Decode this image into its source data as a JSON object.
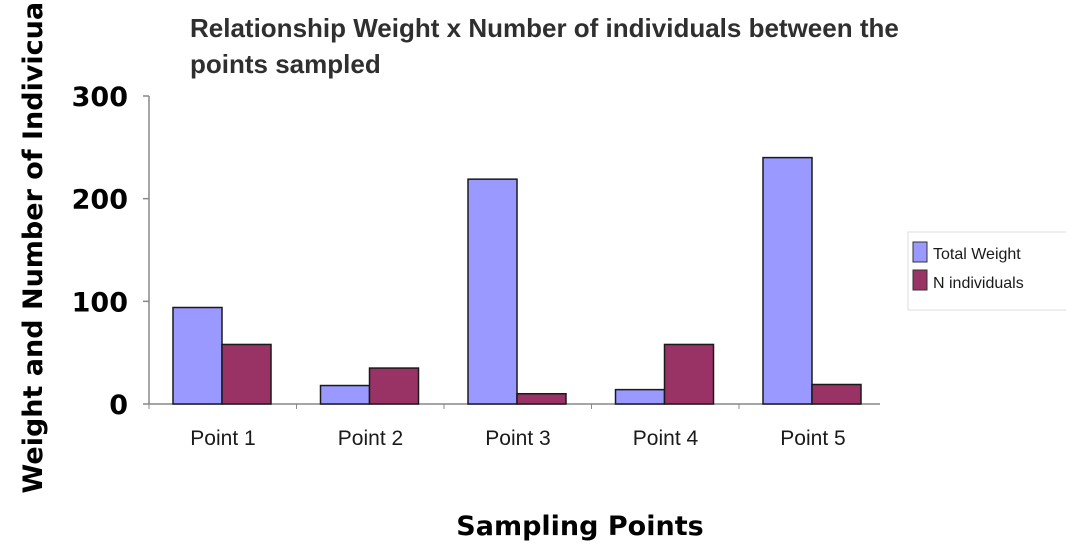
{
  "chart_data": {
    "type": "bar",
    "title_line1": "Relationship Weight x Number of individuals between the",
    "title_line2": "points sampled",
    "xlabel": "Sampling Points",
    "ylabel": "Weight and Number of Indivicuals",
    "categories": [
      "Point 1",
      "Point 2",
      "Point 3",
      "Point 4",
      "Point 5"
    ],
    "series": [
      {
        "name": "Total Weight",
        "values": [
          94,
          18,
          219,
          14,
          240
        ],
        "color": "#9999ff"
      },
      {
        "name": "N individuals",
        "values": [
          58,
          35,
          10,
          58,
          19
        ],
        "color": "#993366"
      }
    ],
    "ylim": [
      0,
      300
    ],
    "yticks": [
      "0",
      "100",
      "200",
      "300"
    ],
    "grid": false,
    "legend_position": "right"
  }
}
